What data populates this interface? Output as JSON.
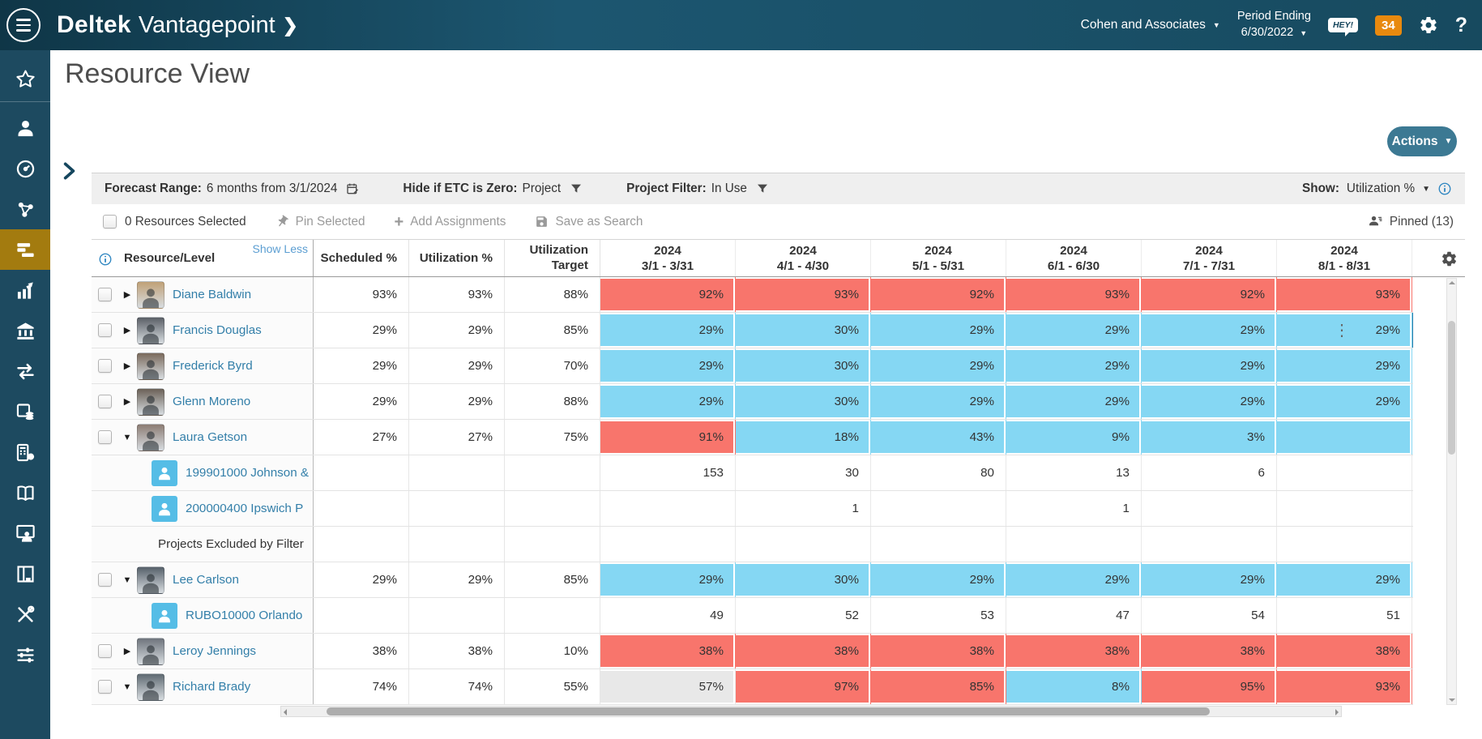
{
  "topbar": {
    "brand1": "Deltek",
    "brand2": "Vantagepoint",
    "company": "Cohen and Associates",
    "period_line1": "Period Ending",
    "period_line2": "6/30/2022",
    "hey_badge": "HEY!",
    "notification_count": "34",
    "help_glyph": "?"
  },
  "sidebar": {
    "items": [
      {
        "name": "favorites",
        "active": false,
        "divider_after": true
      },
      {
        "name": "employees",
        "active": false
      },
      {
        "name": "dashboard",
        "active": false
      },
      {
        "name": "collaboration",
        "active": false
      },
      {
        "name": "resource-planning",
        "active": true
      },
      {
        "name": "analytics",
        "active": false
      },
      {
        "name": "firm",
        "active": false
      },
      {
        "name": "transactions",
        "active": false
      },
      {
        "name": "cash-management",
        "active": false
      },
      {
        "name": "billing",
        "active": false
      },
      {
        "name": "ledger-book",
        "active": false
      },
      {
        "name": "mentoring",
        "active": false
      },
      {
        "name": "board",
        "active": false
      },
      {
        "name": "utilities",
        "active": false
      },
      {
        "name": "settings",
        "active": false
      }
    ]
  },
  "page": {
    "title": "Resource View",
    "actions_label": "Actions"
  },
  "filters": {
    "forecast_label": "Forecast Range:",
    "forecast_value": "6 months from 3/1/2024",
    "etc_label": "Hide if ETC is Zero:",
    "etc_value": "Project",
    "project_filter_label": "Project Filter:",
    "project_filter_value": "In Use",
    "show_label": "Show:",
    "show_value": "Utilization %"
  },
  "selection_bar": {
    "selected_text": "0 Resources Selected",
    "pin_selected": "Pin Selected",
    "add_assignments": "Add Assignments",
    "save_as_search": "Save as Search",
    "pinned": "Pinned (13)"
  },
  "table": {
    "col_resource": "Resource/Level",
    "show_less": "Show Less",
    "col_scheduled": "Scheduled %",
    "col_utilization": "Utilization %",
    "col_target_line1": "Utilization",
    "col_target_line2": "Target",
    "months": [
      {
        "year": "2024",
        "range": "3/1 - 3/31"
      },
      {
        "year": "2024",
        "range": "4/1 - 4/30"
      },
      {
        "year": "2024",
        "range": "5/1 - 5/31"
      },
      {
        "year": "2024",
        "range": "6/1 - 6/30"
      },
      {
        "year": "2024",
        "range": "7/1 - 7/31"
      },
      {
        "year": "2024",
        "range": "8/1 - 8/31"
      }
    ],
    "rows": [
      {
        "kind": "resource",
        "name": "Diane Baldwin",
        "avatar": "#c0a177",
        "expanded": false,
        "selected": false,
        "scheduled": "93%",
        "utilization": "93%",
        "target": "88%",
        "cells": [
          {
            "v": "92%",
            "c": "red"
          },
          {
            "v": "93%",
            "c": "red"
          },
          {
            "v": "92%",
            "c": "red"
          },
          {
            "v": "93%",
            "c": "red"
          },
          {
            "v": "92%",
            "c": "red"
          },
          {
            "v": "93%",
            "c": "red"
          }
        ]
      },
      {
        "kind": "resource",
        "name": "Francis Douglas",
        "avatar": "#5a5f66",
        "expanded": false,
        "selected": true,
        "scheduled": "29%",
        "utilization": "29%",
        "target": "85%",
        "cells": [
          {
            "v": "29%",
            "c": "blue"
          },
          {
            "v": "30%",
            "c": "blue"
          },
          {
            "v": "29%",
            "c": "blue"
          },
          {
            "v": "29%",
            "c": "blue"
          },
          {
            "v": "29%",
            "c": "blue"
          },
          {
            "v": "29%",
            "c": "blue"
          }
        ]
      },
      {
        "kind": "resource",
        "name": "Frederick Byrd",
        "avatar": "#7a6a5c",
        "expanded": false,
        "selected": false,
        "scheduled": "29%",
        "utilization": "29%",
        "target": "70%",
        "cells": [
          {
            "v": "29%",
            "c": "blue"
          },
          {
            "v": "30%",
            "c": "blue"
          },
          {
            "v": "29%",
            "c": "blue"
          },
          {
            "v": "29%",
            "c": "blue"
          },
          {
            "v": "29%",
            "c": "blue"
          },
          {
            "v": "29%",
            "c": "blue"
          }
        ]
      },
      {
        "kind": "resource",
        "name": "Glenn Moreno",
        "avatar": "#6b6157",
        "expanded": false,
        "selected": false,
        "scheduled": "29%",
        "utilization": "29%",
        "target": "88%",
        "cells": [
          {
            "v": "29%",
            "c": "blue"
          },
          {
            "v": "30%",
            "c": "blue"
          },
          {
            "v": "29%",
            "c": "blue"
          },
          {
            "v": "29%",
            "c": "blue"
          },
          {
            "v": "29%",
            "c": "blue"
          },
          {
            "v": "29%",
            "c": "blue"
          }
        ]
      },
      {
        "kind": "resource",
        "name": "Laura Getson",
        "avatar": "#8c7d74",
        "expanded": true,
        "selected": false,
        "scheduled": "27%",
        "utilization": "27%",
        "target": "75%",
        "cells": [
          {
            "v": "91%",
            "c": "red"
          },
          {
            "v": "18%",
            "c": "blue"
          },
          {
            "v": "43%",
            "c": "blue"
          },
          {
            "v": "9%",
            "c": "blue"
          },
          {
            "v": "3%",
            "c": "blue"
          },
          {
            "v": "",
            "c": "blue"
          }
        ]
      },
      {
        "kind": "project",
        "name": "199901000 Johnson &",
        "cells": [
          {
            "v": "153"
          },
          {
            "v": "30"
          },
          {
            "v": "80"
          },
          {
            "v": "13"
          },
          {
            "v": "6"
          },
          {
            "v": ""
          }
        ]
      },
      {
        "kind": "project",
        "name": "200000400 Ipswich P",
        "cells": [
          {
            "v": ""
          },
          {
            "v": "1"
          },
          {
            "v": ""
          },
          {
            "v": "1"
          },
          {
            "v": ""
          },
          {
            "v": ""
          }
        ]
      },
      {
        "kind": "note",
        "name": "Projects Excluded by Filter",
        "cells": [
          {
            "v": ""
          },
          {
            "v": ""
          },
          {
            "v": ""
          },
          {
            "v": ""
          },
          {
            "v": ""
          },
          {
            "v": ""
          }
        ]
      },
      {
        "kind": "resource",
        "name": "Lee Carlson",
        "avatar": "#56606a",
        "expanded": true,
        "selected": false,
        "scheduled": "29%",
        "utilization": "29%",
        "target": "85%",
        "cells": [
          {
            "v": "29%",
            "c": "blue"
          },
          {
            "v": "30%",
            "c": "blue"
          },
          {
            "v": "29%",
            "c": "blue"
          },
          {
            "v": "29%",
            "c": "blue"
          },
          {
            "v": "29%",
            "c": "blue"
          },
          {
            "v": "29%",
            "c": "blue"
          }
        ]
      },
      {
        "kind": "project",
        "name": "RUBO10000 Orlando",
        "cells": [
          {
            "v": "49"
          },
          {
            "v": "52"
          },
          {
            "v": "53"
          },
          {
            "v": "47"
          },
          {
            "v": "54"
          },
          {
            "v": "51"
          }
        ]
      },
      {
        "kind": "resource",
        "name": "Leroy Jennings",
        "avatar": "#6e747c",
        "expanded": false,
        "selected": false,
        "scheduled": "38%",
        "utilization": "38%",
        "target": "10%",
        "cells": [
          {
            "v": "38%",
            "c": "red"
          },
          {
            "v": "38%",
            "c": "red"
          },
          {
            "v": "38%",
            "c": "red"
          },
          {
            "v": "38%",
            "c": "red"
          },
          {
            "v": "38%",
            "c": "red"
          },
          {
            "v": "38%",
            "c": "red"
          }
        ]
      },
      {
        "kind": "resource",
        "name": "Richard Brady",
        "avatar": "#5f6a72",
        "expanded": true,
        "selected": false,
        "scheduled": "74%",
        "utilization": "74%",
        "target": "55%",
        "cells": [
          {
            "v": "57%",
            "c": "gray"
          },
          {
            "v": "97%",
            "c": "red"
          },
          {
            "v": "85%",
            "c": "red"
          },
          {
            "v": "8%",
            "c": "blue"
          },
          {
            "v": "95%",
            "c": "red"
          },
          {
            "v": "93%",
            "c": "red"
          }
        ]
      }
    ]
  },
  "colors": {
    "header_bg": "#16455c",
    "sidebar_bg": "#1d4a60",
    "active_item": "#a37b0f",
    "over_utilized": "#f8756c",
    "under_utilized": "#85d7f3",
    "neutral_cell": "#e8e8e8",
    "link": "#337fa9",
    "actions_button": "#3c7993",
    "notification_badge": "#e8890e"
  }
}
